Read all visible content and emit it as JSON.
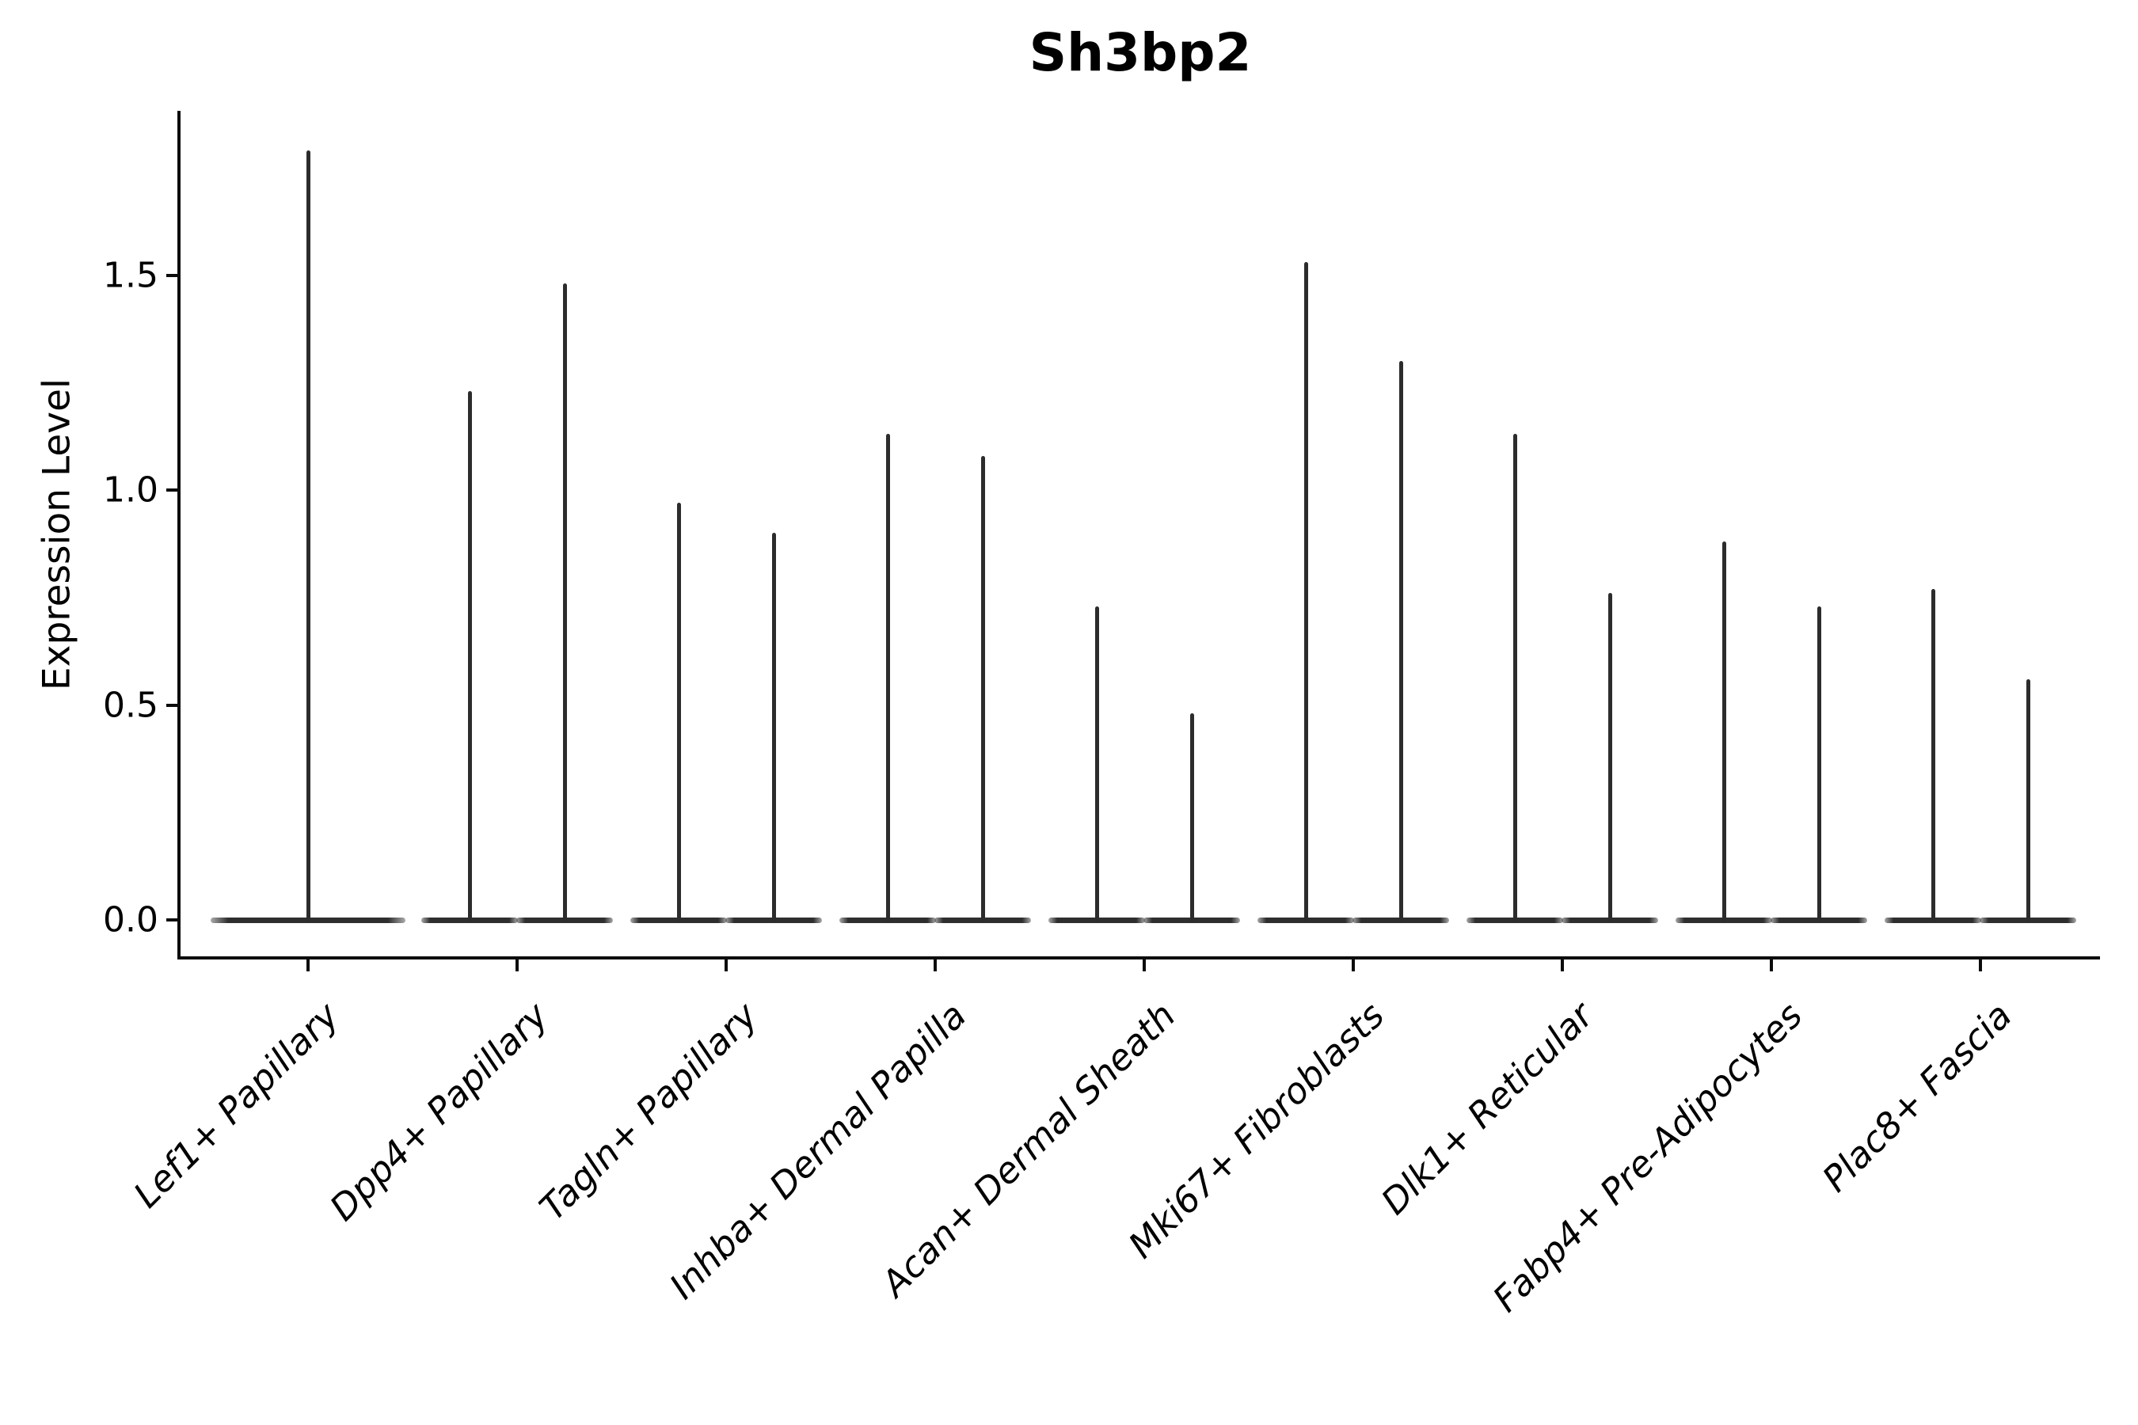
{
  "title": "Sh3bp2",
  "axes": {
    "ylabel": "Expression Level",
    "ytick_labels": [
      "0.0",
      "0.5",
      "1.0",
      "1.5"
    ]
  },
  "colors": {
    "violin_ink": "#2e2e2e",
    "axis_ink": "#0c0c0c",
    "text": "#000000",
    "background": "#ffffff"
  },
  "chart_data": {
    "type": "violin",
    "title": "Sh3bp2",
    "xlabel": "",
    "ylabel": "Expression Level",
    "grid": false,
    "legend_position": "none",
    "categories": [
      "Lef1+ Papillary",
      "Dpp4+ Papillary",
      "Tagln+ Papillary",
      "Inhba+ Dermal Papilla",
      "Acan+ Dermal Sheath",
      "Mki67+ Fibroblasts",
      "Dlk1+ Reticular",
      "Fabp4+ Pre-Adipocytes",
      "Plac8+ Fascia"
    ],
    "violin_maxima_per_category": [
      [
        1.79
      ],
      [
        1.23,
        1.48
      ],
      [
        0.97,
        0.9
      ],
      [
        1.13,
        1.08
      ],
      [
        0.73,
        0.48
      ],
      [
        1.53,
        1.3
      ],
      [
        1.13,
        0.76
      ],
      [
        0.88,
        0.73
      ],
      [
        0.77,
        0.56
      ]
    ],
    "violin_shape_note": "each violin collapses to a flat bar at expression 0 with a thin central spike rising to its maximum; single-violin category spans full slot width, paired violins sit side by side",
    "baseline_value": 0.0,
    "yticks": [
      0.0,
      0.5,
      1.0,
      1.5
    ],
    "ylim": [
      -0.09,
      1.88
    ]
  }
}
